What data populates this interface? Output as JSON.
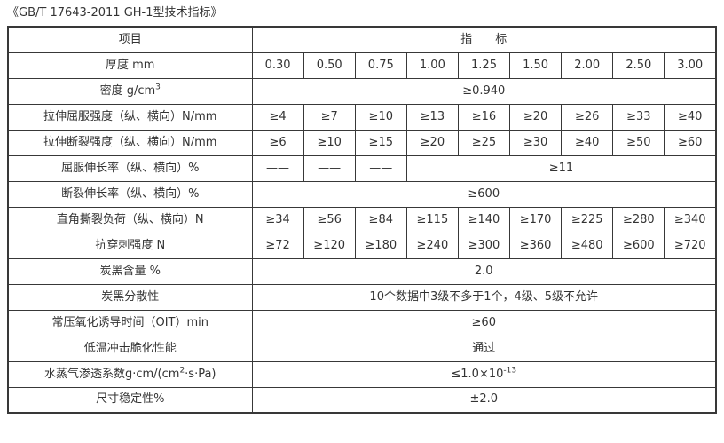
{
  "page": {
    "title": "《GB/T 17643-2011 GH-1型技术指标》"
  },
  "colors": {
    "text": "#333333",
    "border": "#383838",
    "background": "#ffffff"
  },
  "table": {
    "value_column_count": 9,
    "rows": [
      {
        "label": "项目",
        "cells": [
          {
            "text": "指　　标",
            "span": 9
          }
        ]
      },
      {
        "label": "厚度 mm",
        "cells": [
          "0.30",
          "0.50",
          "0.75",
          "1.00",
          "1.25",
          "1.50",
          "2.00",
          "2.50",
          "3.00"
        ]
      },
      {
        "label": [
          {
            "t": "密度 g/cm"
          },
          {
            "t": "3",
            "sup": true
          }
        ],
        "cells": [
          {
            "text": "≥0.940",
            "span": 9
          }
        ]
      },
      {
        "label": "拉伸屈服强度（纵、横向）N/mm",
        "cells": [
          "≥4",
          "≥7",
          "≥10",
          "≥13",
          "≥16",
          "≥20",
          "≥26",
          "≥33",
          "≥40"
        ]
      },
      {
        "label": "拉伸断裂强度（纵、横向）N/mm",
        "cells": [
          "≥6",
          "≥10",
          "≥15",
          "≥20",
          "≥25",
          "≥30",
          "≥40",
          "≥50",
          "≥60"
        ]
      },
      {
        "label": "屈服伸长率（纵、横向）%",
        "cells": [
          "——",
          "——",
          "——",
          {
            "text": "≥11",
            "span": 6
          }
        ]
      },
      {
        "label": "断裂伸长率（纵、横向）%",
        "cells": [
          {
            "text": "≥600",
            "span": 9
          }
        ]
      },
      {
        "label": "直角撕裂负荷（纵、横向）N",
        "cells": [
          "≥34",
          "≥56",
          "≥84",
          "≥115",
          "≥140",
          "≥170",
          "≥225",
          "≥280",
          "≥340"
        ]
      },
      {
        "label": "抗穿刺强度 N",
        "cells": [
          "≥72",
          "≥120",
          "≥180",
          "≥240",
          "≥300",
          "≥360",
          "≥480",
          "≥600",
          "≥720"
        ]
      },
      {
        "label": "炭黑含量 %",
        "cells": [
          {
            "text": "2.0",
            "span": 9
          }
        ]
      },
      {
        "label": "炭黑分散性",
        "cells": [
          {
            "text": "10个数据中3级不多于1个，4级、5级不允许",
            "span": 9
          }
        ]
      },
      {
        "label": "常压氧化诱导时间（OIT）min",
        "cells": [
          {
            "text": "≥60",
            "span": 9
          }
        ]
      },
      {
        "label": "低温冲击脆化性能",
        "cells": [
          {
            "text": "通过",
            "span": 9
          }
        ]
      },
      {
        "label": [
          {
            "t": "水蒸气渗透系数g·cm/(cm"
          },
          {
            "t": "2",
            "sup": true
          },
          {
            "t": "·s·Pa)"
          }
        ],
        "cells": [
          {
            "text": [
              {
                "t": "≤1.0×10"
              },
              {
                "t": "-13",
                "sup": true
              }
            ],
            "span": 9
          }
        ]
      },
      {
        "label": "尺寸稳定性%",
        "cells": [
          {
            "text": "±2.0",
            "span": 9
          }
        ]
      }
    ]
  }
}
